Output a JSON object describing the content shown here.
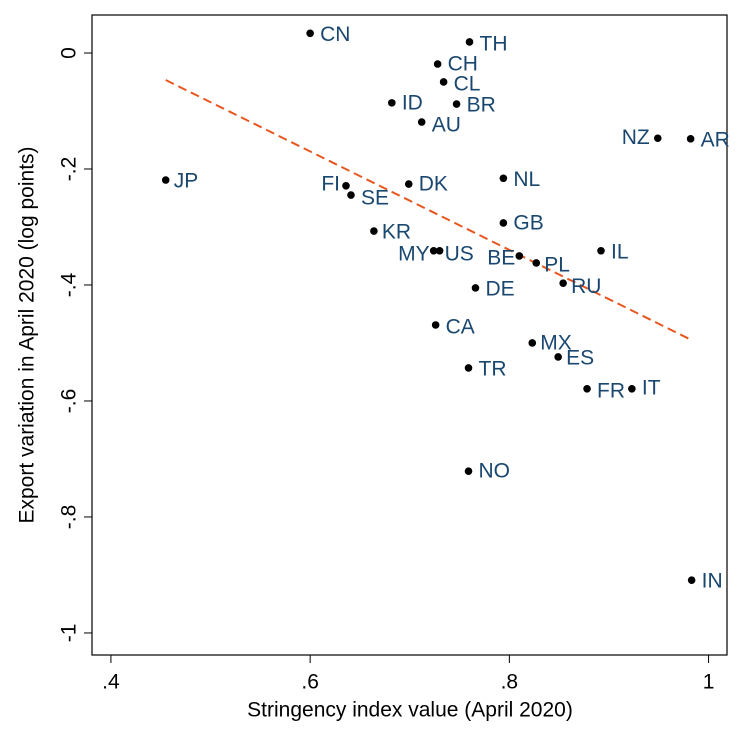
{
  "chart_data": {
    "type": "scatter",
    "xlabel": "Stringency index value (April 2020)",
    "ylabel": "Export variation in April 2020 (log points)",
    "labels": [
      "CN",
      "TH",
      "CH",
      "CL",
      "ID",
      "BR",
      "AU",
      "NZ",
      "AR",
      "JP",
      "NL",
      "FI",
      "SE",
      "DK",
      "GB",
      "KR",
      "MY",
      "US",
      "BE",
      "IL",
      "PL",
      "RU",
      "DE",
      "CA",
      "MX",
      "ES",
      "TR",
      "FR",
      "IT",
      "NO",
      "IN"
    ],
    "x": [
      0.6,
      0.76,
      0.728,
      0.734,
      0.682,
      0.747,
      0.712,
      0.949,
      0.982,
      0.455,
      0.794,
      0.636,
      0.641,
      0.699,
      0.794,
      0.664,
      0.724,
      0.73,
      0.81,
      0.892,
      0.827,
      0.854,
      0.766,
      0.726,
      0.823,
      0.849,
      0.759,
      0.878,
      0.923,
      0.759,
      0.983
    ],
    "y": [
      0.034,
      0.019,
      -0.019,
      -0.05,
      -0.086,
      -0.088,
      -0.119,
      -0.147,
      -0.148,
      -0.219,
      -0.216,
      -0.229,
      -0.245,
      -0.226,
      -0.293,
      -0.307,
      -0.341,
      -0.341,
      -0.35,
      -0.341,
      -0.362,
      -0.397,
      -0.405,
      -0.469,
      -0.5,
      -0.524,
      -0.543,
      -0.579,
      -0.579,
      -0.721,
      -0.909
    ],
    "color": "#000000",
    "label_color": "#1a476f",
    "fit_line": {
      "x": [
        0.455,
        0.983
      ],
      "y": [
        -0.0466,
        -0.495
      ],
      "color": "#e8561f"
    },
    "xlim": [
      0.381,
      1.0185
    ],
    "ylim": [
      -1.038,
      0.0655
    ],
    "xticks": [
      {
        "value": 0.4,
        "label": ".4"
      },
      {
        "value": 0.6,
        "label": ".6"
      },
      {
        "value": 0.8,
        "label": ".8"
      },
      1
    ],
    "yticks": [
      0,
      {
        "value": -0.2,
        "label": "-.2"
      },
      {
        "value": -0.4,
        "label": "-.4"
      },
      {
        "value": -0.6,
        "label": "-.6"
      },
      {
        "value": -0.8,
        "label": "-.8"
      },
      -1
    ]
  }
}
